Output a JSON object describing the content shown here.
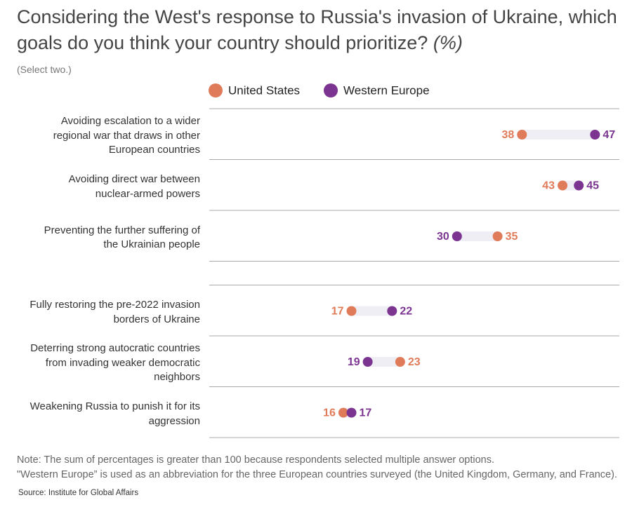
{
  "chart_data": {
    "type": "dumbbell",
    "title": "Considering the West's response to Russia's invasion of Ukraine, which goals do you think your country should prioritize?",
    "title_unit": "(%)",
    "subtitle": "(Select two.)",
    "categories": [
      "Avoiding escalation to a wider regional war that draws in other European countries",
      "Avoiding direct war between nuclear-armed powers",
      "Preventing the further suffering of the Ukrainian people",
      "Fully restoring the pre-2022 invasion borders of Ukraine",
      "Deterring strong autocratic countries from invading weaker democratic neighbors",
      "Weakening Russia to punish it for its aggression"
    ],
    "series": [
      {
        "name": "United States",
        "color": "#e07b5a",
        "values": [
          38,
          43,
          35,
          17,
          23,
          16
        ]
      },
      {
        "name": "Western Europe",
        "color": "#7b3591",
        "values": [
          47,
          45,
          30,
          22,
          19,
          17
        ]
      }
    ],
    "xlim": [
      0,
      50
    ],
    "notes": [
      "Note: The sum of percentages is greater than 100 because respondents selected multiple answer options.",
      "\"Western Europe” is used as an abbreviation for the three European countries surveyed (the United Kingdom, Germany, and France)."
    ],
    "source": "Source: Institute for Global Affairs"
  }
}
